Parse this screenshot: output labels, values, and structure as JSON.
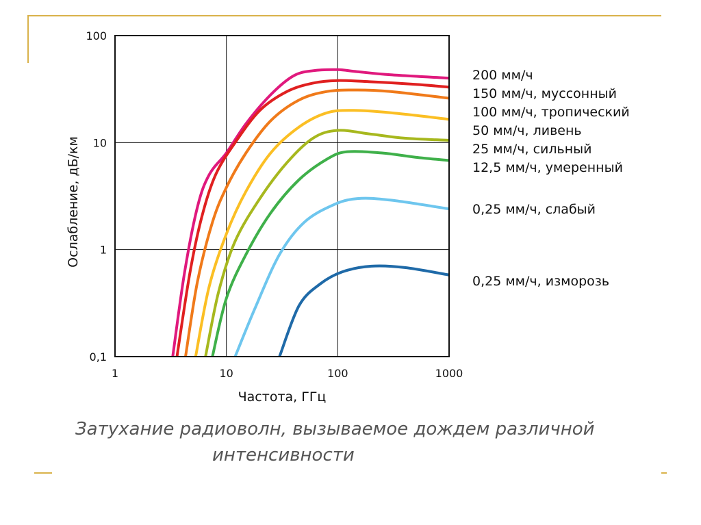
{
  "caption": {
    "line1": "Затухание радиоволн, вызываемое дождем различной",
    "line2": "интенсивности"
  },
  "chart_data": {
    "type": "line",
    "xscale": "log",
    "yscale": "log",
    "xlim": [
      1,
      1000
    ],
    "ylim": [
      0.1,
      100
    ],
    "xlabel": "Частота, ГГц",
    "ylabel": "Ослабление, дБ/км",
    "xticks": [
      "1",
      "10",
      "100",
      "1000"
    ],
    "yticks": [
      "0,1",
      "1",
      "10",
      "100"
    ],
    "grid": true,
    "legend_placement": "right",
    "series": [
      {
        "name": "200 мм/ч",
        "color": "#e0197d",
        "points": [
          [
            3.3,
            0.1
          ],
          [
            4.2,
            0.6
          ],
          [
            5.5,
            2.5
          ],
          [
            7,
            5
          ],
          [
            10,
            8
          ],
          [
            15,
            15
          ],
          [
            25,
            28
          ],
          [
            40,
            42
          ],
          [
            60,
            47
          ],
          [
            100,
            48
          ],
          [
            150,
            46
          ],
          [
            300,
            43
          ],
          [
            1000,
            40
          ]
        ]
      },
      {
        "name": "150 мм/ч, муссонный",
        "color": "#e02020",
        "points": [
          [
            3.6,
            0.1
          ],
          [
            4.7,
            0.6
          ],
          [
            6,
            2
          ],
          [
            8,
            5
          ],
          [
            12,
            10
          ],
          [
            20,
            20
          ],
          [
            35,
            30
          ],
          [
            60,
            36
          ],
          [
            100,
            38
          ],
          [
            200,
            37
          ],
          [
            500,
            35
          ],
          [
            1000,
            33
          ]
        ]
      },
      {
        "name": "100 мм/ч, тропический",
        "color": "#f07a1a",
        "points": [
          [
            4.3,
            0.1
          ],
          [
            5.5,
            0.5
          ],
          [
            7.5,
            1.8
          ],
          [
            10,
            3.8
          ],
          [
            15,
            8
          ],
          [
            25,
            16
          ],
          [
            45,
            25
          ],
          [
            80,
            30
          ],
          [
            150,
            31
          ],
          [
            300,
            30
          ],
          [
            1000,
            26
          ]
        ]
      },
      {
        "name": "50 мм/ч, ливень",
        "color": "#fbbf24",
        "points": [
          [
            5.3,
            0.1
          ],
          [
            7,
            0.45
          ],
          [
            10,
            1.4
          ],
          [
            15,
            3.5
          ],
          [
            25,
            8
          ],
          [
            45,
            14
          ],
          [
            80,
            19
          ],
          [
            140,
            20
          ],
          [
            300,
            19
          ],
          [
            1000,
            16.5
          ]
        ]
      },
      {
        "name": "25 мм/ч, сильный",
        "color": "#a7b81e",
        "points": [
          [
            6.5,
            0.1
          ],
          [
            8.5,
            0.4
          ],
          [
            12,
            1.2
          ],
          [
            20,
            3
          ],
          [
            35,
            6.5
          ],
          [
            60,
            11
          ],
          [
            100,
            13
          ],
          [
            200,
            12
          ],
          [
            400,
            11
          ],
          [
            1000,
            10.5
          ]
        ]
      },
      {
        "name": "12,5 мм/ч, умеренный",
        "color": "#3fb04a",
        "points": [
          [
            7.5,
            0.1
          ],
          [
            10,
            0.35
          ],
          [
            15,
            0.9
          ],
          [
            25,
            2.2
          ],
          [
            45,
            4.5
          ],
          [
            80,
            7
          ],
          [
            120,
            8.2
          ],
          [
            250,
            8
          ],
          [
            500,
            7.3
          ],
          [
            1000,
            6.8
          ]
        ]
      },
      {
        "name": "0,25 мм/ч, слабый",
        "color": "#6ec6ee",
        "points": [
          [
            12,
            0.1
          ],
          [
            18,
            0.28
          ],
          [
            30,
            0.9
          ],
          [
            50,
            1.8
          ],
          [
            90,
            2.6
          ],
          [
            150,
            3
          ],
          [
            300,
            2.9
          ],
          [
            1000,
            2.4
          ]
        ]
      },
      {
        "name": "0,25 мм/ч, изморозь",
        "color": "#1f6aa8",
        "points": [
          [
            30,
            0.1
          ],
          [
            45,
            0.3
          ],
          [
            70,
            0.48
          ],
          [
            110,
            0.62
          ],
          [
            200,
            0.7
          ],
          [
            400,
            0.68
          ],
          [
            1000,
            0.58
          ]
        ]
      }
    ]
  }
}
